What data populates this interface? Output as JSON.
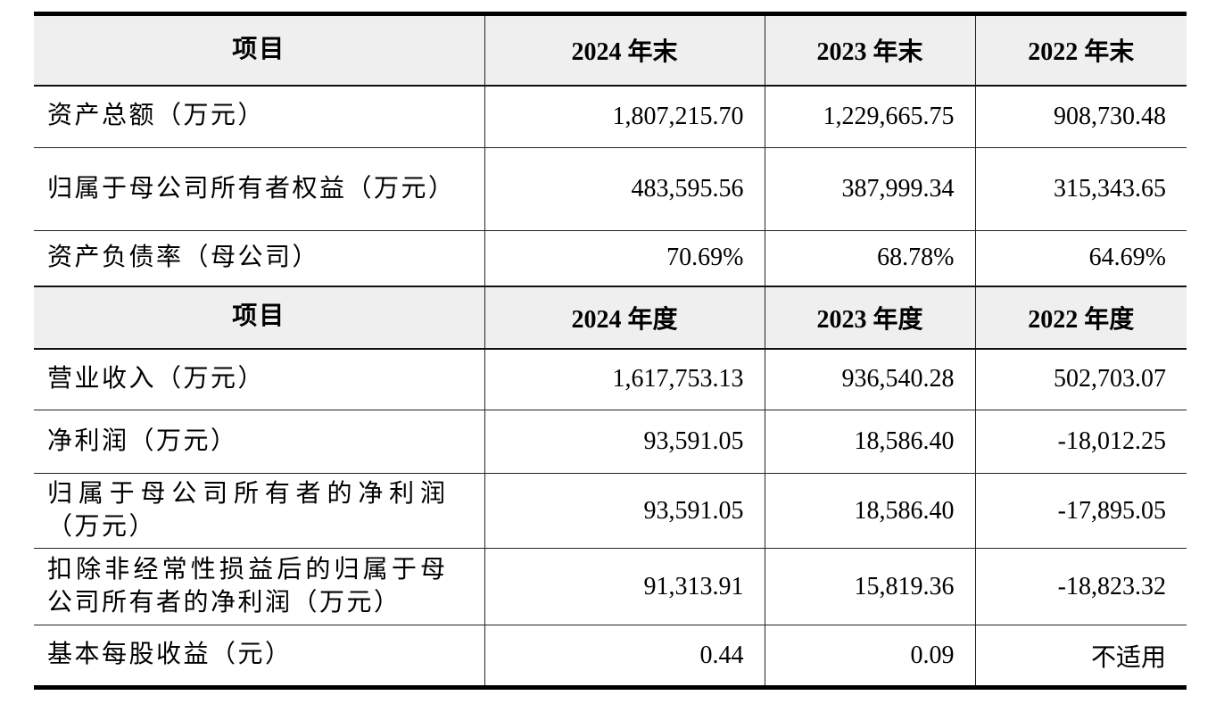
{
  "table": {
    "sections": [
      {
        "header_label": "项目",
        "columns": [
          "2024 年末",
          "2023 年末",
          "2022 年末"
        ],
        "rows": [
          {
            "label": "资产总额（万元）",
            "values": [
              "1,807,215.70",
              "1,229,665.75",
              "908,730.48"
            ]
          },
          {
            "label": "归属于母公司所有者权益（万元）",
            "values": [
              "483,595.56",
              "387,999.34",
              "315,343.65"
            ]
          },
          {
            "label": "资产负债率（母公司）",
            "values": [
              "70.69%",
              "68.78%",
              "64.69%"
            ]
          }
        ]
      },
      {
        "header_label": "项目",
        "columns": [
          "2024 年度",
          "2023 年度",
          "2022 年度"
        ],
        "rows": [
          {
            "label": "营业收入（万元）",
            "values": [
              "1,617,753.13",
              "936,540.28",
              "502,703.07"
            ]
          },
          {
            "label": "净利润（万元）",
            "values": [
              "93,591.05",
              "18,586.40",
              "-18,012.25"
            ]
          },
          {
            "label": "归属于母公司所有者的净利润（万元）",
            "values": [
              "93,591.05",
              "18,586.40",
              "-17,895.05"
            ]
          },
          {
            "label": "扣除非经常性损益后的归属于母公司所有者的净利润（万元）",
            "values": [
              "91,313.91",
              "15,819.36",
              "-18,823.32"
            ]
          },
          {
            "label": "基本每股收益（元）",
            "values": [
              "0.44",
              "0.09",
              "不适用"
            ]
          }
        ]
      }
    ]
  }
}
